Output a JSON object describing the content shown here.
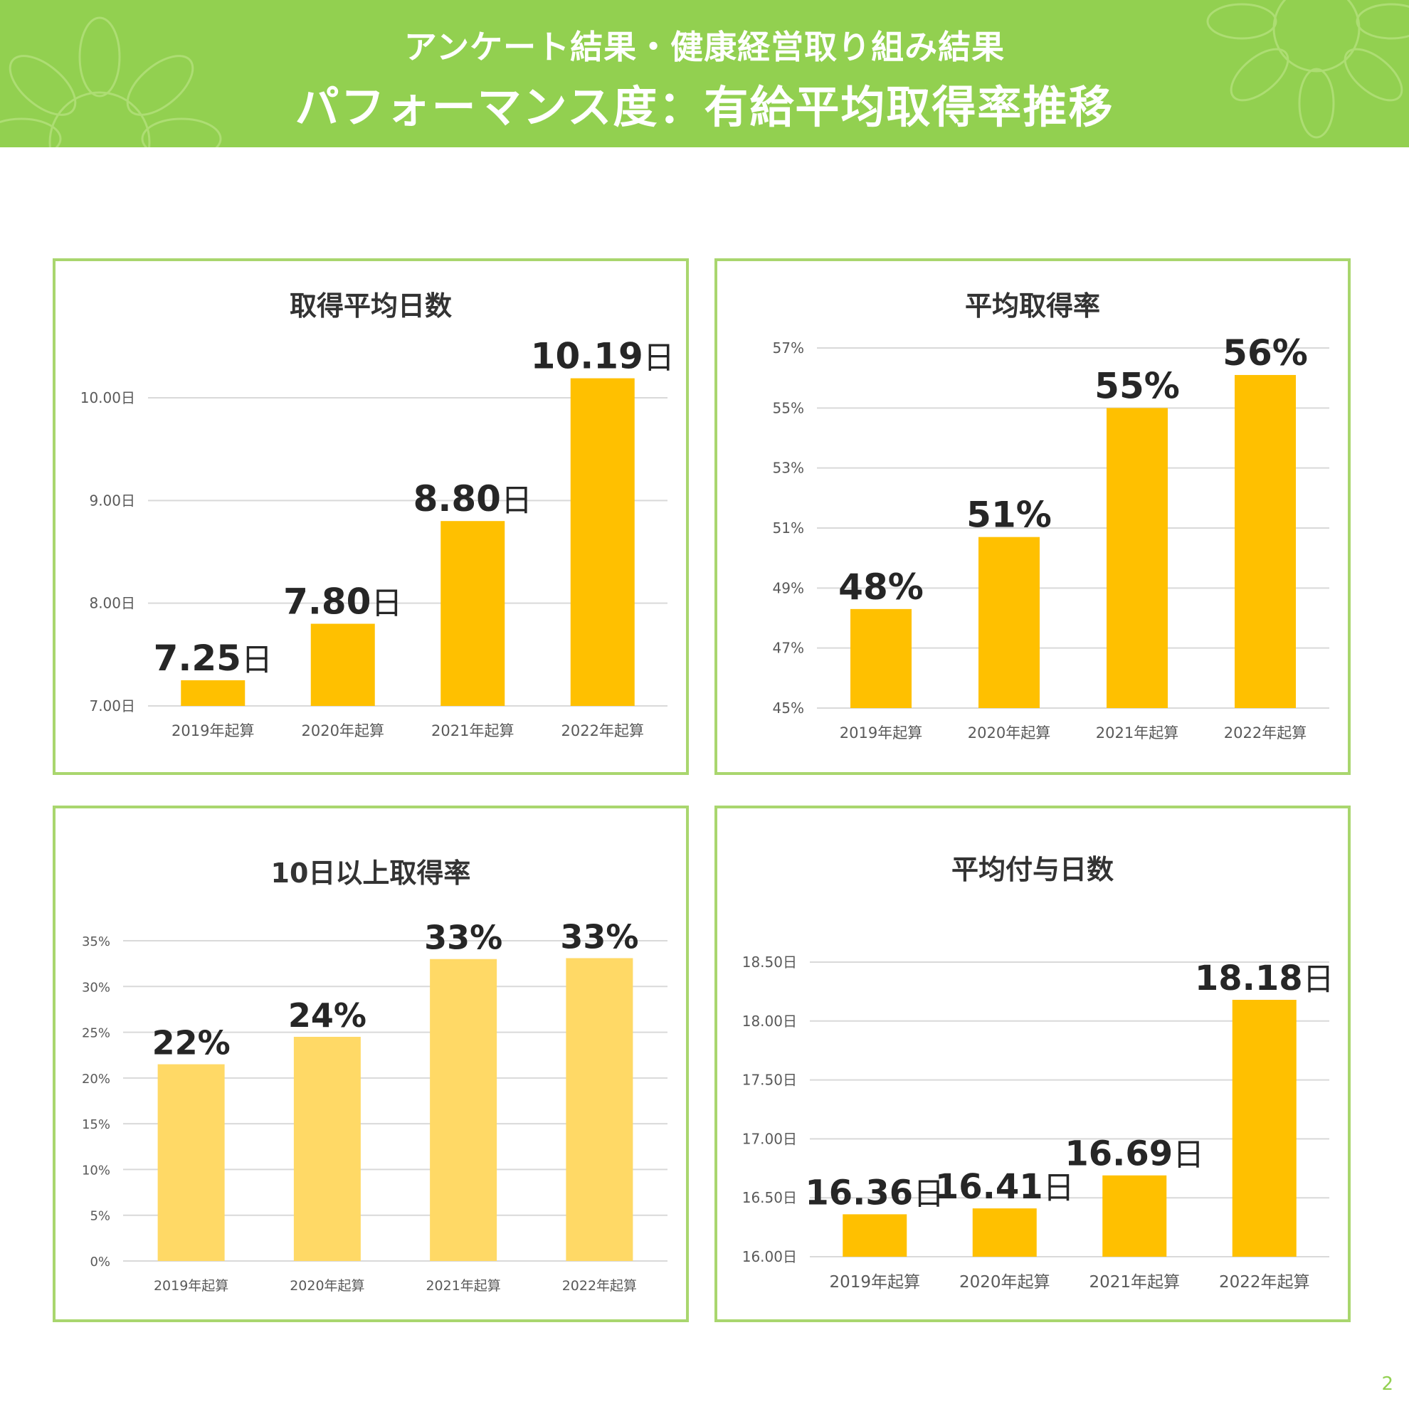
{
  "header": {
    "subtitle": "アンケート結果・健康経営取り組み結果",
    "title": "パフォーマンス度：有給平均取得率推移"
  },
  "page_number": "2",
  "colors": {
    "header_bg": "#92d050",
    "panel_border": "#a9d66e",
    "bar": "#ffc000",
    "bar_light": "#ffd966"
  },
  "chart_data": [
    {
      "type": "bar",
      "title": "取得平均日数",
      "categories": [
        "2019年起算",
        "2020年起算",
        "2021年起算",
        "2022年起算"
      ],
      "values": [
        7.25,
        7.8,
        8.8,
        10.19
      ],
      "data_labels": [
        "7.25",
        "7.80",
        "8.80",
        "10.19"
      ],
      "data_label_unit": "日",
      "ylim": [
        7.0,
        10.0
      ],
      "yticks": [
        7.0,
        8.0,
        9.0,
        10.0
      ],
      "ytick_labels": [
        "7.00日",
        "8.00日",
        "9.00日",
        "10.00日"
      ],
      "grid": true,
      "bar_color": "#ffc000"
    },
    {
      "type": "bar",
      "title": "平均取得率",
      "categories": [
        "2019年起算",
        "2020年起算",
        "2021年起算",
        "2022年起算"
      ],
      "values": [
        48.3,
        50.7,
        55.0,
        56.1
      ],
      "data_labels": [
        "48%",
        "51%",
        "55%",
        "56%"
      ],
      "data_label_unit": "",
      "ylim": [
        45,
        57
      ],
      "yticks": [
        45,
        47,
        49,
        51,
        53,
        55,
        57
      ],
      "ytick_labels": [
        "45%",
        "47%",
        "49%",
        "51%",
        "53%",
        "55%",
        "57%"
      ],
      "grid": true,
      "bar_color": "#ffc000"
    },
    {
      "type": "bar",
      "title": "10日以上取得率",
      "categories": [
        "2019年起算",
        "2020年起算",
        "2021年起算",
        "2022年起算"
      ],
      "values": [
        21.5,
        24.5,
        33.0,
        33.1
      ],
      "data_labels": [
        "22%",
        "24%",
        "33%",
        "33%"
      ],
      "data_label_unit": "",
      "ylim": [
        0,
        35
      ],
      "yticks": [
        0,
        5,
        10,
        15,
        20,
        25,
        30,
        35
      ],
      "ytick_labels": [
        "0%",
        "5%",
        "10%",
        "15%",
        "20%",
        "25%",
        "30%",
        "35%"
      ],
      "grid": true,
      "bar_color": "#ffd966"
    },
    {
      "type": "bar",
      "title": "平均付与日数",
      "categories": [
        "2019年起算",
        "2020年起算",
        "2021年起算",
        "2022年起算"
      ],
      "values": [
        16.36,
        16.41,
        16.69,
        18.18
      ],
      "data_labels": [
        "16.36",
        "16.41",
        "16.69",
        "18.18"
      ],
      "data_label_unit": "日",
      "ylim": [
        16.0,
        18.5
      ],
      "yticks": [
        16.0,
        16.5,
        17.0,
        17.5,
        18.0,
        18.5
      ],
      "ytick_labels": [
        "16.00日",
        "16.50日",
        "17.00日",
        "17.50日",
        "18.00日",
        "18.50日"
      ],
      "grid": true,
      "bar_color": "#ffc000"
    }
  ]
}
